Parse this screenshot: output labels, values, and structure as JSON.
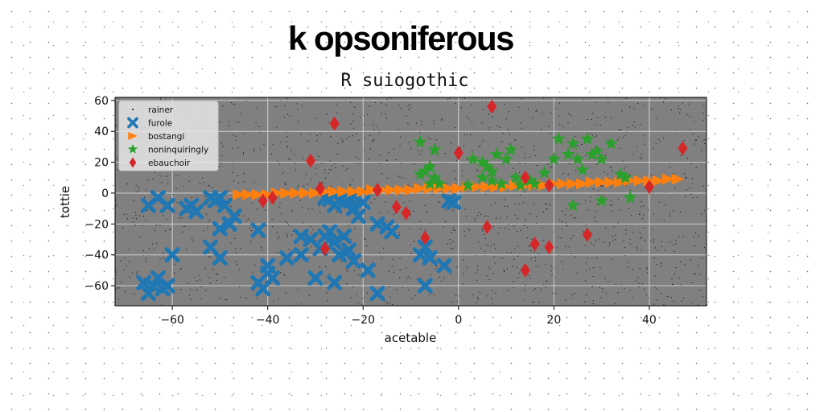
{
  "chart_data": {
    "type": "scatter",
    "suptitle": "k opsoniferous",
    "title": "R suiogothic",
    "xlabel": "acetable",
    "ylabel": "tottie",
    "xlim": [
      -72,
      52
    ],
    "ylim": [
      -73,
      62
    ],
    "xticks": [
      -60,
      -40,
      -20,
      0,
      20,
      40
    ],
    "yticks": [
      -60,
      -40,
      -20,
      0,
      20,
      40,
      60
    ],
    "xtick_labels": [
      "−60",
      "−40",
      "−20",
      "0",
      "20",
      "40"
    ],
    "ytick_labels": [
      "−60",
      "−40",
      "−20",
      "0",
      "20",
      "40",
      "60"
    ],
    "grid": true,
    "background": "#808080",
    "legend_position": "upper left",
    "series": [
      {
        "name": "rainer",
        "marker": "point",
        "color": "#111111",
        "points": []
      },
      {
        "name": "furole",
        "marker": "x",
        "color": "#1f77b4",
        "points": [
          [
            -65,
            -65
          ],
          [
            -64,
            -60
          ],
          [
            -62,
            -62
          ],
          [
            -66,
            -58
          ],
          [
            -63,
            -55
          ],
          [
            -61,
            -60
          ],
          [
            -65,
            -8
          ],
          [
            -63,
            -3
          ],
          [
            -61,
            -8
          ],
          [
            -60,
            -40
          ],
          [
            -57,
            -10
          ],
          [
            -56,
            -8
          ],
          [
            -55,
            -12
          ],
          [
            -52,
            -3
          ],
          [
            -51,
            -5
          ],
          [
            -50,
            -3
          ],
          [
            -49,
            -8
          ],
          [
            -50,
            -23
          ],
          [
            -48,
            -20
          ],
          [
            -47,
            -15
          ],
          [
            -52,
            -35
          ],
          [
            -50,
            -42
          ],
          [
            -42,
            -58
          ],
          [
            -41,
            -62
          ],
          [
            -40,
            -47
          ],
          [
            -39,
            -55
          ],
          [
            -42,
            -24
          ],
          [
            -40,
            -52
          ],
          [
            -36,
            -42
          ],
          [
            -33,
            -28
          ],
          [
            -31,
            -30
          ],
          [
            -29,
            -36
          ],
          [
            -28,
            -28
          ],
          [
            -27,
            -25
          ],
          [
            -26,
            -32
          ],
          [
            -25,
            -40
          ],
          [
            -24,
            -28
          ],
          [
            -23,
            -37
          ],
          [
            -22,
            -44
          ],
          [
            -26,
            -58
          ],
          [
            -28,
            -3
          ],
          [
            -27,
            -4
          ],
          [
            -26,
            -8
          ],
          [
            -25,
            -5
          ],
          [
            -24,
            -6
          ],
          [
            -23,
            -3
          ],
          [
            -22,
            -10
          ],
          [
            -21,
            -15
          ],
          [
            -22,
            -2
          ],
          [
            -20,
            -6
          ],
          [
            -17,
            -20
          ],
          [
            -15,
            -22
          ],
          [
            -14,
            -25
          ],
          [
            -19,
            -50
          ],
          [
            -17,
            -65
          ],
          [
            -8,
            -40
          ],
          [
            -7,
            -35
          ],
          [
            -6,
            -42
          ],
          [
            -7,
            -60
          ],
          [
            -3,
            -47
          ],
          [
            -2,
            -5
          ],
          [
            -1,
            -6
          ],
          [
            -33,
            -40
          ],
          [
            -30,
            -55
          ]
        ]
      },
      {
        "name": "bostangi",
        "marker": "triangle-right",
        "color": "#ff7f0e",
        "points": [
          [
            -46,
            -1
          ],
          [
            -44,
            -1
          ],
          [
            -42,
            -1
          ],
          [
            -40,
            -1
          ],
          [
            -38,
            0
          ],
          [
            -36,
            0
          ],
          [
            -34,
            0
          ],
          [
            -32,
            0
          ],
          [
            -30,
            0
          ],
          [
            -28,
            1
          ],
          [
            -26,
            1
          ],
          [
            -24,
            1
          ],
          [
            -22,
            1
          ],
          [
            -20,
            1
          ],
          [
            -18,
            2
          ],
          [
            -16,
            2
          ],
          [
            -14,
            2
          ],
          [
            -12,
            2
          ],
          [
            -10,
            2
          ],
          [
            -8,
            3
          ],
          [
            -6,
            3
          ],
          [
            -4,
            3
          ],
          [
            -2,
            3
          ],
          [
            0,
            3
          ],
          [
            2,
            4
          ],
          [
            4,
            4
          ],
          [
            6,
            4
          ],
          [
            8,
            4
          ],
          [
            10,
            4
          ],
          [
            12,
            5
          ],
          [
            14,
            5
          ],
          [
            16,
            5
          ],
          [
            18,
            5
          ],
          [
            20,
            6
          ],
          [
            22,
            6
          ],
          [
            24,
            6
          ],
          [
            26,
            6
          ],
          [
            28,
            7
          ],
          [
            30,
            7
          ],
          [
            32,
            7
          ],
          [
            34,
            7
          ],
          [
            36,
            8
          ],
          [
            38,
            8
          ],
          [
            40,
            8
          ],
          [
            42,
            8
          ],
          [
            44,
            9
          ],
          [
            46,
            9
          ]
        ]
      },
      {
        "name": "noninquiringly",
        "marker": "star",
        "color": "#2ca02c",
        "points": [
          [
            -8,
            33
          ],
          [
            -5,
            28
          ],
          [
            -6,
            17
          ],
          [
            -8,
            12
          ],
          [
            -7,
            14
          ],
          [
            -5,
            10
          ],
          [
            -4,
            6
          ],
          [
            -6,
            6
          ],
          [
            2,
            5
          ],
          [
            3,
            22
          ],
          [
            5,
            20
          ],
          [
            6,
            17
          ],
          [
            7,
            14
          ],
          [
            5,
            10
          ],
          [
            7,
            8
          ],
          [
            9,
            6
          ],
          [
            10,
            22
          ],
          [
            12,
            10
          ],
          [
            13,
            5
          ],
          [
            15,
            8
          ],
          [
            18,
            13
          ],
          [
            20,
            22
          ],
          [
            21,
            35
          ],
          [
            23,
            25
          ],
          [
            24,
            32
          ],
          [
            25,
            22
          ],
          [
            26,
            15
          ],
          [
            27,
            35
          ],
          [
            28,
            25
          ],
          [
            29,
            27
          ],
          [
            30,
            22
          ],
          [
            32,
            32
          ],
          [
            34,
            12
          ],
          [
            35,
            10
          ],
          [
            36,
            -3
          ],
          [
            30,
            -5
          ],
          [
            24,
            -8
          ],
          [
            8,
            25
          ],
          [
            11,
            28
          ],
          [
            16,
            6
          ]
        ]
      },
      {
        "name": "ebauchoir",
        "marker": "diamond",
        "color": "#d62728",
        "points": [
          [
            7,
            56
          ],
          [
            -26,
            45
          ],
          [
            -31,
            21
          ],
          [
            -29,
            3
          ],
          [
            -41,
            -5
          ],
          [
            -39,
            -3
          ],
          [
            -17,
            2
          ],
          [
            -13,
            -9
          ],
          [
            -11,
            -13
          ],
          [
            -7,
            -29
          ],
          [
            -28,
            -36
          ],
          [
            0,
            26
          ],
          [
            6,
            -22
          ],
          [
            14,
            10
          ],
          [
            14,
            -50
          ],
          [
            16,
            -33
          ],
          [
            19,
            5
          ],
          [
            19,
            -35
          ],
          [
            27,
            -27
          ],
          [
            40,
            4
          ],
          [
            47,
            29
          ]
        ]
      }
    ]
  },
  "colors": {
    "plot_background": "#808080",
    "grid": "#c8c8c8",
    "legend_background": "#e6e6e6"
  }
}
